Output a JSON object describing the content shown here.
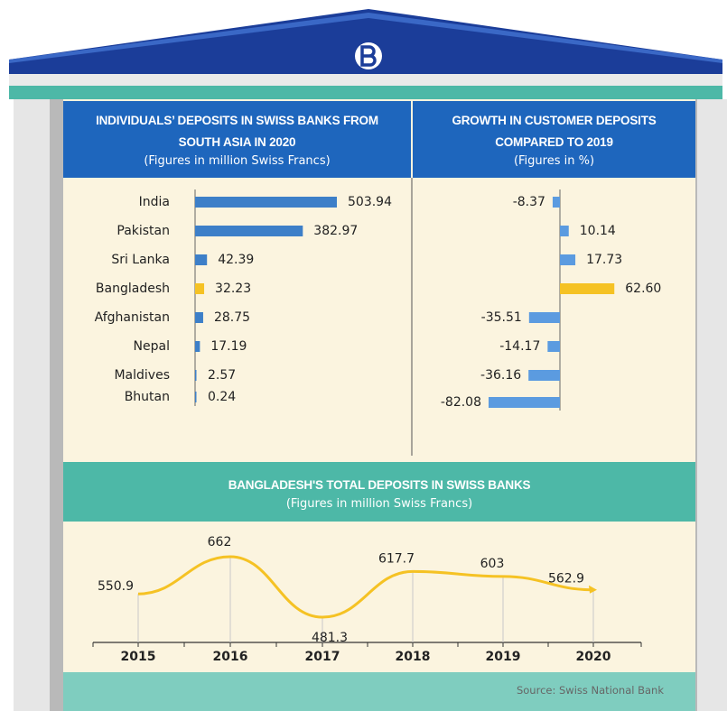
{
  "chart_data": [
    {
      "type": "bar",
      "orientation": "horizontal",
      "title": "INDIVIDUALS’ DEPOSITS IN SWISS BANKS FROM SOUTH ASIA IN 2020",
      "subtitle": "(Figures in million Swiss Francs)",
      "categories": [
        "India",
        "Pakistan",
        "Sri Lanka",
        "Bangladesh",
        "Afghanistan",
        "Nepal",
        "Maldives",
        "Bhutan"
      ],
      "values": [
        503.94,
        382.97,
        42.39,
        32.23,
        28.75,
        17.19,
        2.57,
        0.24
      ],
      "colors": [
        "#3d7fc8",
        "#3d7fc8",
        "#3d7fc8",
        "#f5c224",
        "#3d7fc8",
        "#3d7fc8",
        "#3d7fc8",
        "#3d7fc8"
      ]
    },
    {
      "type": "bar",
      "orientation": "horizontal",
      "title": "GROWTH IN CUSTOMER DEPOSITS COMPARED TO 2019",
      "subtitle": "(Figures in %)",
      "values": [
        -8.37,
        10.14,
        17.73,
        62.6,
        -35.51,
        -14.17,
        -36.16,
        -82.08
      ],
      "value_labels": [
        "-8.37",
        "10.14",
        "17.73",
        "62.60",
        "-35.51",
        "-14.17",
        "-36.16",
        "-82.08"
      ],
      "colors": [
        "#5b9be0",
        "#5b9be0",
        "#5b9be0",
        "#f5c224",
        "#5b9be0",
        "#5b9be0",
        "#5b9be0",
        "#5b9be0"
      ]
    },
    {
      "type": "line",
      "title": "BANGLADESH'S TOTAL DEPOSITS IN SWISS BANKS",
      "subtitle": "(Figures in million Swiss Francs)",
      "categories": [
        "2015",
        "2016",
        "2017",
        "2018",
        "2019",
        "2020"
      ],
      "values": [
        550.9,
        662,
        481.3,
        617.7,
        603,
        562.9
      ],
      "color": "#f5c224"
    }
  ],
  "source": "Source: Swiss National Bank"
}
